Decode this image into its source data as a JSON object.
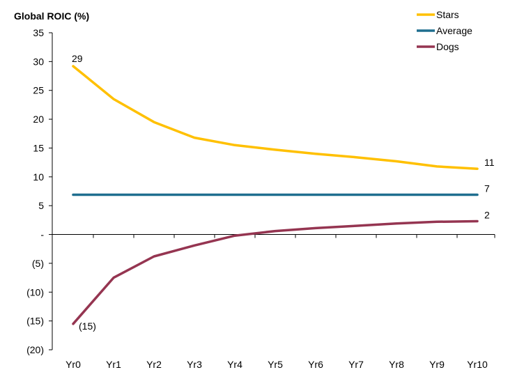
{
  "chart_data": {
    "type": "line",
    "title": "",
    "ylabel": "Global ROIC  (%)",
    "xlabel": "",
    "categories": [
      "Yr0",
      "Yr1",
      "Yr2",
      "Yr3",
      "Yr4",
      "Yr5",
      "Yr6",
      "Yr7",
      "Yr8",
      "Yr9",
      "Yr10"
    ],
    "ylim": [
      -20,
      35
    ],
    "yticks": [
      35,
      30,
      25,
      20,
      15,
      10,
      5,
      0,
      -5,
      -10,
      -15,
      -20
    ],
    "ytick_labels": [
      "35",
      "30",
      "25",
      "20",
      "15",
      "10",
      "5",
      "-",
      "(5)",
      "(10)",
      "(15)",
      "(20)"
    ],
    "grid": false,
    "legend_position": "top-right",
    "series": [
      {
        "name": "Stars",
        "color": "#FFC000",
        "values": [
          29.2,
          23.5,
          19.5,
          16.8,
          15.5,
          14.7,
          14.0,
          13.4,
          12.7,
          11.8,
          11.4
        ]
      },
      {
        "name": "Average",
        "color": "#1F6E8F",
        "values": [
          6.9,
          6.9,
          6.9,
          6.9,
          6.9,
          6.9,
          6.9,
          6.9,
          6.9,
          6.9,
          6.9
        ]
      },
      {
        "name": "Dogs",
        "color": "#953551",
        "values": [
          -15.5,
          -7.5,
          -3.8,
          -1.9,
          -0.2,
          0.6,
          1.1,
          1.5,
          1.9,
          2.2,
          2.3
        ]
      }
    ],
    "annotations": [
      {
        "series": "Stars",
        "index": 0,
        "text": "29",
        "anchor": "above"
      },
      {
        "series": "Stars",
        "index": 10,
        "text": "11",
        "anchor": "right"
      },
      {
        "series": "Average",
        "index": 10,
        "text": "7",
        "anchor": "right"
      },
      {
        "series": "Dogs",
        "index": 0,
        "text": "(15)",
        "anchor": "below-right"
      },
      {
        "series": "Dogs",
        "index": 10,
        "text": "2",
        "anchor": "right"
      }
    ]
  }
}
